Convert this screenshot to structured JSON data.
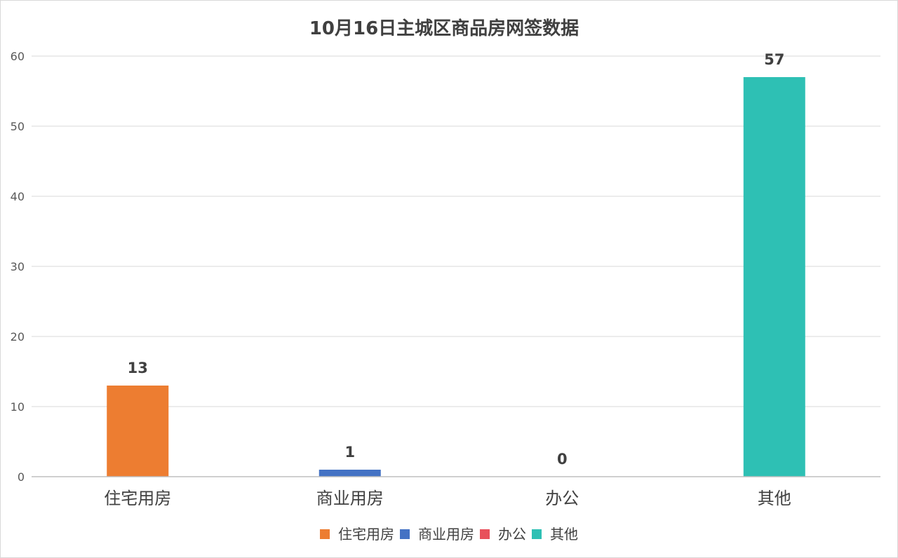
{
  "chart_data": {
    "type": "bar",
    "title": "10月16日主城区商品房网签数据",
    "categories": [
      "住宅用房",
      "商业用房",
      "办公",
      "其他"
    ],
    "values": [
      13,
      1,
      0,
      57
    ],
    "colors": [
      "#ED7D31",
      "#4472C4",
      "#E8505B",
      "#2EC0B4"
    ],
    "data_labels": [
      "13",
      "1",
      "0",
      "57"
    ],
    "ylim": [
      0,
      60
    ],
    "yticks": [
      0,
      10,
      20,
      30,
      40,
      50,
      60
    ],
    "ytick_labels": [
      "0",
      "10",
      "20",
      "30",
      "40",
      "50",
      "60"
    ],
    "xlabel": "",
    "ylabel": "",
    "grid": true,
    "legend": {
      "placement": "bottom",
      "entries": [
        "住宅用房",
        "商业用房",
        "办公",
        "其他"
      ]
    }
  }
}
